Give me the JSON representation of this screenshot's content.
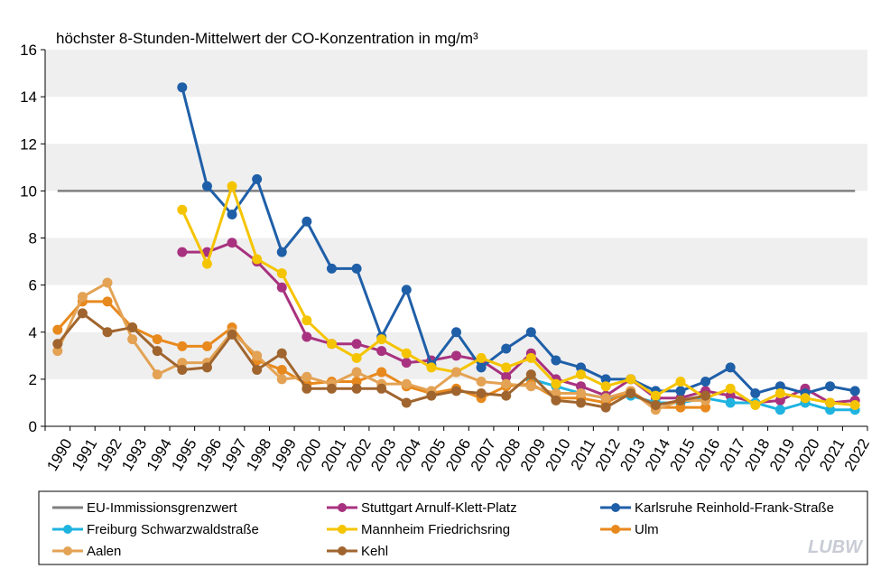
{
  "chart_data": {
    "type": "line",
    "title": "höchster 8-Stunden-Mittelwert  der CO-Konzentration  in mg/m³",
    "xlabel": "",
    "ylabel": "",
    "ylim": [
      0,
      16
    ],
    "yticks": [
      0,
      2,
      4,
      6,
      8,
      10,
      12,
      14,
      16
    ],
    "x": [
      "1990",
      "1991",
      "1992",
      "1993",
      "1994",
      "1995",
      "1996",
      "1997",
      "1998",
      "1999",
      "2000",
      "2001",
      "2002",
      "2003",
      "2004",
      "2005",
      "2006",
      "2007",
      "2008",
      "2009",
      "2010",
      "2011",
      "2012",
      "2013",
      "2014",
      "2015",
      "2016",
      "2017",
      "2018",
      "2019",
      "2020",
      "2021",
      "2022"
    ],
    "grid": "alternating horizontal bands",
    "legend_position": "bottom",
    "series": [
      {
        "name": "EU-Immissionsgrenzwert",
        "color": "#7f7f7f",
        "markers": false,
        "values": [
          10,
          10,
          10,
          10,
          10,
          10,
          10,
          10,
          10,
          10,
          10,
          10,
          10,
          10,
          10,
          10,
          10,
          10,
          10,
          10,
          10,
          10,
          10,
          10,
          10,
          10,
          10,
          10,
          10,
          10,
          10,
          10,
          10
        ]
      },
      {
        "name": "Stuttgart Arnulf-Klett-Platz",
        "color": "#a8327f",
        "markers": true,
        "values": [
          null,
          null,
          null,
          null,
          null,
          7.4,
          7.4,
          7.8,
          7.0,
          5.9,
          3.8,
          3.5,
          3.5,
          3.2,
          2.7,
          2.8,
          3.0,
          2.8,
          2.1,
          3.1,
          2.0,
          1.7,
          1.3,
          2.0,
          1.2,
          1.2,
          1.5,
          1.3,
          1.0,
          1.1,
          1.6,
          1.0,
          1.1
        ]
      },
      {
        "name": "Karlsruhe Reinhold-Frank-Straße",
        "color": "#1f5fa8",
        "markers": true,
        "values": [
          null,
          null,
          null,
          null,
          null,
          14.4,
          10.2,
          9.0,
          10.5,
          7.4,
          8.7,
          6.7,
          6.7,
          3.8,
          5.8,
          2.6,
          4.0,
          2.5,
          3.3,
          4.0,
          2.8,
          2.5,
          2.0,
          2.0,
          1.5,
          1.5,
          1.9,
          2.5,
          1.4,
          1.7,
          1.4,
          1.7,
          1.5
        ]
      },
      {
        "name": "Freiburg Schwarzwaldstraße",
        "color": "#1fb3e0",
        "markers": true,
        "values": [
          null,
          null,
          null,
          null,
          null,
          null,
          null,
          null,
          null,
          null,
          null,
          null,
          null,
          null,
          null,
          null,
          null,
          null,
          null,
          2.0,
          1.7,
          1.4,
          1.2,
          1.3,
          1.0,
          1.0,
          1.2,
          1.0,
          1.0,
          0.7,
          1.0,
          0.7,
          0.7
        ]
      },
      {
        "name": "Mannheim Friedrichsring",
        "color": "#f5c400",
        "markers": true,
        "values": [
          null,
          null,
          null,
          null,
          null,
          9.2,
          6.9,
          10.2,
          7.1,
          6.5,
          4.5,
          3.5,
          2.9,
          3.7,
          3.1,
          2.5,
          2.3,
          2.9,
          2.5,
          2.9,
          1.8,
          2.2,
          1.7,
          2.0,
          1.3,
          1.9,
          1.2,
          1.6,
          0.9,
          1.4,
          1.2,
          1.0,
          0.9
        ]
      },
      {
        "name": "Ulm",
        "color": "#e8891d",
        "markers": true,
        "values": [
          4.1,
          5.3,
          5.3,
          4.2,
          3.7,
          3.4,
          3.4,
          4.2,
          2.8,
          2.4,
          1.8,
          1.9,
          1.9,
          2.3,
          1.7,
          1.4,
          1.6,
          1.2,
          1.7,
          1.8,
          1.2,
          1.2,
          1.0,
          1.5,
          0.8,
          0.8,
          0.8,
          null,
          null,
          null,
          null,
          null,
          null
        ]
      },
      {
        "name": "Aalen",
        "color": "#e3a254",
        "markers": true,
        "values": [
          3.2,
          5.5,
          6.1,
          3.7,
          2.2,
          2.7,
          2.7,
          4.0,
          3.0,
          2.0,
          2.1,
          1.8,
          2.3,
          1.8,
          1.8,
          1.5,
          2.3,
          1.9,
          1.8,
          1.7,
          1.4,
          1.4,
          1.2,
          1.5,
          0.7,
          1.1,
          1.1,
          null,
          null,
          null,
          null,
          null,
          null
        ]
      },
      {
        "name": "Kehl",
        "color": "#a0652e",
        "markers": true,
        "values": [
          3.5,
          4.8,
          4.0,
          4.2,
          3.2,
          2.4,
          2.5,
          3.9,
          2.4,
          3.1,
          1.6,
          1.6,
          1.6,
          1.6,
          1.0,
          1.3,
          1.5,
          1.4,
          1.3,
          2.2,
          1.1,
          1.0,
          0.8,
          1.4,
          0.9,
          1.1,
          1.3,
          null,
          null,
          null,
          null,
          null,
          null
        ]
      }
    ]
  },
  "logo": "LUBW"
}
